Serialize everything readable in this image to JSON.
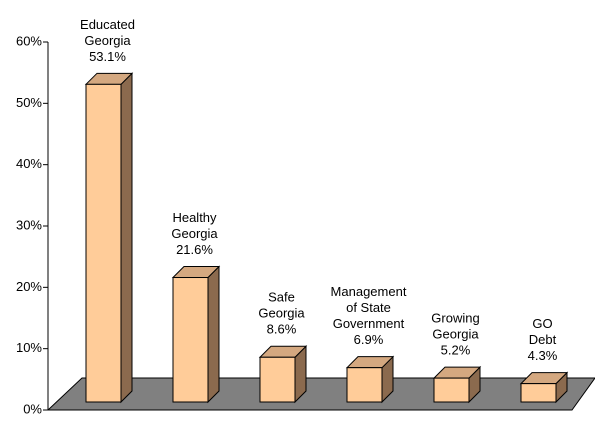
{
  "chart_data": {
    "type": "bar3d",
    "categories": [
      [
        "Educated",
        "Georgia"
      ],
      [
        "Healthy",
        "Georgia"
      ],
      [
        "Safe",
        "Georgia"
      ],
      [
        "Management",
        "of State",
        "Government"
      ],
      [
        "Growing",
        "Georgia"
      ],
      [
        "GO",
        "Debt"
      ]
    ],
    "values": [
      53.1,
      21.6,
      8.6,
      6.9,
      5.2,
      4.3
    ],
    "value_labels": [
      "53.1%",
      "21.6%",
      "8.6%",
      "6.9%",
      "5.2%",
      "4.3%"
    ],
    "color": "#ffcc99",
    "ylim": [
      0,
      60
    ],
    "yticks": [
      {
        "value": 0,
        "label": "0%"
      },
      {
        "value": 10,
        "label": "10%"
      },
      {
        "value": 20,
        "label": "20%"
      },
      {
        "value": 30,
        "label": "30%"
      },
      {
        "value": 40,
        "label": "40%"
      },
      {
        "value": 50,
        "label": "50%"
      },
      {
        "value": 60,
        "label": "60%"
      }
    ]
  }
}
